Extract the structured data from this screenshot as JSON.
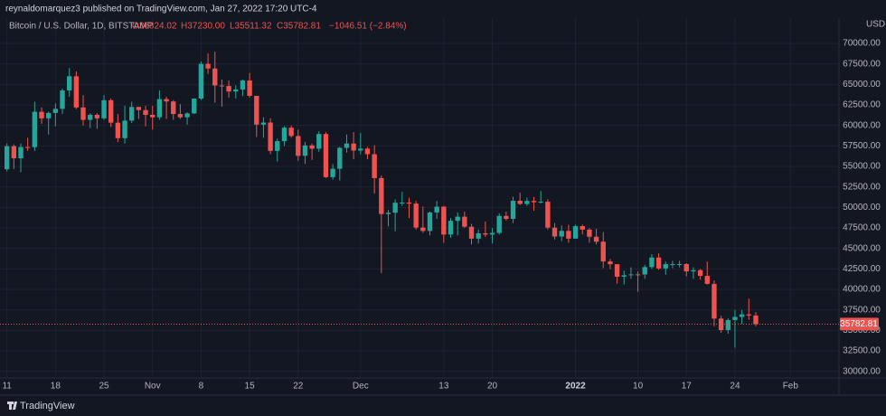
{
  "header": "reynaldomarquez3 published on TradingView.com, Jan 27, 2022 17:20 UTC-4",
  "footer": "TradingView",
  "chart_data": {
    "type": "candlestick",
    "title": "Bitcoin / U.S. Dollar, 1D, BITSTAMP",
    "legend": {
      "open": "O36824.02",
      "high": "H37230.00",
      "low": "L35511.32",
      "close": "C35782.81",
      "change": "−1046.51 (−2.84%)"
    },
    "currency": "USD",
    "up_color": "#26a69a",
    "down_color": "#ef5350",
    "grid": true,
    "last_price": 35782.81,
    "xlim": [
      "2021-10-10",
      "2022-02-08"
    ],
    "xticks": [
      {
        "value": "2021-10-11",
        "label": "11"
      },
      {
        "value": "2021-10-18",
        "label": "18"
      },
      {
        "value": "2021-10-25",
        "label": "25"
      },
      {
        "value": "2021-11-01",
        "label": "Nov"
      },
      {
        "value": "2021-11-08",
        "label": "8"
      },
      {
        "value": "2021-11-15",
        "label": "15"
      },
      {
        "value": "2021-11-22",
        "label": "22"
      },
      {
        "value": "2021-12-01",
        "label": "Dec"
      },
      {
        "value": "2021-12-13",
        "label": "13"
      },
      {
        "value": "2021-12-20",
        "label": "20"
      },
      {
        "value": "2022-01-01",
        "label": "2022"
      },
      {
        "value": "2022-01-10",
        "label": "10"
      },
      {
        "value": "2022-01-17",
        "label": "17"
      },
      {
        "value": "2022-01-24",
        "label": "24"
      },
      {
        "value": "2022-02-01",
        "label": "Feb"
      }
    ],
    "ylim": [
      29200,
      73100
    ],
    "yticks": [
      {
        "value": 30000,
        "label": "30000.00"
      },
      {
        "value": 32500,
        "label": "32500.00"
      },
      {
        "value": 35000,
        "label": "35000.00"
      },
      {
        "value": 37500,
        "label": "37500.00"
      },
      {
        "value": 40000,
        "label": "40000.00"
      },
      {
        "value": 42500,
        "label": "42500.00"
      },
      {
        "value": 45000,
        "label": "45000.00"
      },
      {
        "value": 47500,
        "label": "47500.00"
      },
      {
        "value": 50000,
        "label": "50000.00"
      },
      {
        "value": 52500,
        "label": "52500.00"
      },
      {
        "value": 55000,
        "label": "55000.00"
      },
      {
        "value": 57500,
        "label": "57500.00"
      },
      {
        "value": 60000,
        "label": "60000.00"
      },
      {
        "value": 62500,
        "label": "62500.00"
      },
      {
        "value": 65000,
        "label": "65000.00"
      },
      {
        "value": 67500,
        "label": "67500.00"
      },
      {
        "value": 70000,
        "label": "70000.00"
      }
    ],
    "x": [
      "2021-10-11",
      "2021-10-12",
      "2021-10-13",
      "2021-10-14",
      "2021-10-15",
      "2021-10-16",
      "2021-10-17",
      "2021-10-18",
      "2021-10-19",
      "2021-10-20",
      "2021-10-21",
      "2021-10-22",
      "2021-10-23",
      "2021-10-24",
      "2021-10-25",
      "2021-10-26",
      "2021-10-27",
      "2021-10-28",
      "2021-10-29",
      "2021-10-30",
      "2021-10-31",
      "2021-11-01",
      "2021-11-02",
      "2021-11-03",
      "2021-11-04",
      "2021-11-05",
      "2021-11-06",
      "2021-11-07",
      "2021-11-08",
      "2021-11-09",
      "2021-11-10",
      "2021-11-11",
      "2021-11-12",
      "2021-11-13",
      "2021-11-14",
      "2021-11-15",
      "2021-11-16",
      "2021-11-17",
      "2021-11-18",
      "2021-11-19",
      "2021-11-20",
      "2021-11-21",
      "2021-11-22",
      "2021-11-23",
      "2021-11-24",
      "2021-11-25",
      "2021-11-26",
      "2021-11-27",
      "2021-11-28",
      "2021-11-29",
      "2021-11-30",
      "2021-12-01",
      "2021-12-02",
      "2021-12-03",
      "2021-12-04",
      "2021-12-05",
      "2021-12-06",
      "2021-12-07",
      "2021-12-08",
      "2021-12-09",
      "2021-12-10",
      "2021-12-11",
      "2021-12-12",
      "2021-12-13",
      "2021-12-14",
      "2021-12-15",
      "2021-12-16",
      "2021-12-17",
      "2021-12-18",
      "2021-12-19",
      "2021-12-20",
      "2021-12-21",
      "2021-12-22",
      "2021-12-23",
      "2021-12-24",
      "2021-12-25",
      "2021-12-26",
      "2021-12-27",
      "2021-12-28",
      "2021-12-29",
      "2021-12-30",
      "2021-12-31",
      "2022-01-01",
      "2022-01-02",
      "2022-01-03",
      "2022-01-04",
      "2022-01-05",
      "2022-01-06",
      "2022-01-07",
      "2022-01-08",
      "2022-01-09",
      "2022-01-10",
      "2022-01-11",
      "2022-01-12",
      "2022-01-13",
      "2022-01-14",
      "2022-01-15",
      "2022-01-16",
      "2022-01-17",
      "2022-01-18",
      "2022-01-19",
      "2022-01-20",
      "2022-01-21",
      "2022-01-22",
      "2022-01-23",
      "2022-01-24",
      "2022-01-25",
      "2022-01-26",
      "2022-01-27"
    ],
    "open": [
      54660,
      57480,
      56000,
      57370,
      57360,
      61670,
      60870,
      61530,
      62030,
      64280,
      66000,
      62200,
      60690,
      61300,
      60870,
      63080,
      60340,
      58450,
      60590,
      62260,
      61880,
      61300,
      61000,
      63220,
      62930,
      61400,
      61000,
      61480,
      63280,
      67520,
      66950,
      64880,
      64820,
      64150,
      64390,
      65500,
      63620,
      60100,
      60360,
      56900,
      58090,
      59730,
      58720,
      56300,
      57570,
      57170,
      58960,
      53700,
      54720,
      57270,
      57800,
      56950,
      57180,
      56500,
      53580,
      49200,
      49360,
      50580,
      50600,
      50470,
      47550,
      47140,
      49390,
      50100,
      46700,
      48370,
      48880,
      47650,
      46200,
      46850,
      46700,
      46900,
      48970,
      48610,
      50820,
      50430,
      50800,
      50640,
      50700,
      47540,
      46460,
      47150,
      46200,
      47720,
      47300,
      46430,
      45830,
      43420,
      43080,
      41560,
      41730,
      41840,
      41830,
      42730,
      43900,
      42570,
      43080,
      43090,
      43100,
      42200,
      42350,
      41660,
      40680,
      36450,
      35050,
      36270,
      36650,
      36960,
      36824.02
    ],
    "high": [
      57800,
      57700,
      57800,
      58500,
      62900,
      62200,
      61700,
      62700,
      64500,
      67000,
      66600,
      63700,
      61500,
      61500,
      63700,
      63300,
      61400,
      62400,
      62900,
      62300,
      62400,
      62400,
      64300,
      63500,
      63100,
      62600,
      61600,
      63300,
      67800,
      68800,
      69000,
      65600,
      65500,
      64900,
      65600,
      66400,
      63600,
      61000,
      60900,
      58400,
      59900,
      60000,
      59500,
      58000,
      57800,
      59300,
      59200,
      55300,
      57400,
      58900,
      59200,
      59100,
      57400,
      57600,
      53900,
      49700,
      51000,
      51900,
      51200,
      50800,
      50100,
      49500,
      50800,
      50200,
      48700,
      49400,
      49500,
      48000,
      47300,
      48300,
      47500,
      49300,
      49500,
      51300,
      51800,
      51200,
      51300,
      52000,
      51000,
      48100,
      47800,
      47900,
      47900,
      47900,
      47500,
      47400,
      47000,
      43700,
      43100,
      42300,
      42700,
      42200,
      43000,
      44300,
      44400,
      43400,
      43500,
      43500,
      43200,
      42700,
      42500,
      43400,
      41100,
      36800,
      36500,
      37500,
      37500,
      38900,
      37230
    ],
    "low": [
      54400,
      54700,
      54300,
      56900,
      56900,
      60200,
      58900,
      59900,
      61400,
      63500,
      62000,
      60000,
      59700,
      59600,
      60700,
      59800,
      58000,
      57800,
      60300,
      60800,
      59900,
      59500,
      60700,
      60800,
      60700,
      60800,
      60100,
      61400,
      63100,
      66300,
      62800,
      62300,
      63400,
      63300,
      63600,
      63400,
      58600,
      58500,
      56500,
      55600,
      57500,
      58500,
      55700,
      55300,
      55800,
      56800,
      53600,
      53400,
      53300,
      56700,
      55900,
      56500,
      55900,
      51700,
      42000,
      47700,
      47100,
      50200,
      48700,
      47300,
      46900,
      46600,
      48600,
      45700,
      46300,
      46600,
      47500,
      45500,
      45600,
      46400,
      45600,
      46700,
      48400,
      48100,
      50300,
      50200,
      49600,
      50500,
      47300,
      46100,
      45900,
      45700,
      46200,
      46700,
      45700,
      45500,
      42600,
      42500,
      40700,
      40600,
      41300,
      39700,
      41300,
      42500,
      42400,
      41800,
      42600,
      42700,
      41600,
      41300,
      41200,
      40600,
      35500,
      34700,
      34600,
      32900,
      35800,
      36300,
      35511.32
    ],
    "close": [
      57480,
      56000,
      57370,
      57360,
      61670,
      60870,
      61530,
      62030,
      64280,
      66000,
      62200,
      60690,
      61300,
      60870,
      63080,
      60340,
      58450,
      60590,
      62260,
      61880,
      61300,
      61000,
      63220,
      62930,
      61400,
      61000,
      61480,
      63280,
      67520,
      66950,
      64880,
      64820,
      64150,
      64390,
      65500,
      63620,
      60100,
      60360,
      56900,
      58090,
      59730,
      58720,
      56300,
      57570,
      57170,
      58960,
      53700,
      54720,
      57270,
      57800,
      56950,
      57180,
      56500,
      53580,
      49200,
      49360,
      50580,
      50600,
      50470,
      47550,
      47140,
      49390,
      50100,
      46700,
      48370,
      48880,
      47650,
      46200,
      46850,
      46700,
      46900,
      48970,
      48610,
      50820,
      50430,
      50800,
      50640,
      50700,
      47540,
      46460,
      47150,
      46200,
      47720,
      47300,
      46430,
      45830,
      43420,
      43080,
      41560,
      41730,
      41840,
      41830,
      42730,
      43900,
      42570,
      43080,
      43090,
      43100,
      42200,
      42350,
      41660,
      40680,
      36450,
      35050,
      36270,
      36650,
      36960,
      36824.02,
      35782.81
    ]
  }
}
